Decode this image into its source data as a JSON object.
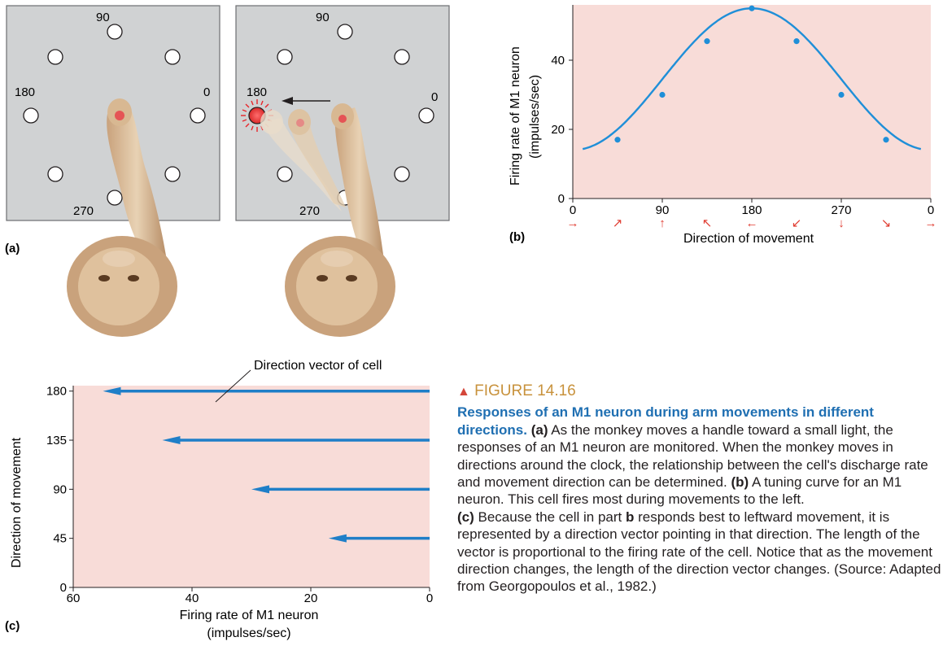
{
  "figure": {
    "number": "FIGURE 14.16",
    "heading": "Responses of an M1 neuron during arm movements in different directions.",
    "text_a_label": "(a)",
    "text_a": "As the monkey moves a handle toward a small light, the responses of an M1 neuron are monitored. When the monkey moves in directions around the clock, the relationship between the cell's discharge rate and movement direction can be determined.",
    "text_b_label": "(b)",
    "text_b": "A tuning curve for an M1 neuron. This cell fires most during movements to the left.",
    "text_c_label": "(c)",
    "text_c_1": "Because the cell in part",
    "text_c_b": "b",
    "text_c_2": "responds best to leftward movement, it is represented by a direction vector pointing in that direction. The length of the vector is proportional to the firing rate of the cell. Notice that as the movement direction changes, the length of the direction vector changes. (Source: Adapted from Georgopoulos et al., 1982.)"
  },
  "panel_a": {
    "label": "(a)",
    "left": {
      "t90": "90",
      "t180": "180",
      "t0": "0",
      "t270": "270"
    },
    "right": {
      "t90": "90",
      "t180": "180",
      "t0": "0",
      "t270": "270"
    }
  },
  "colors": {
    "curve": "#1f8fd8",
    "arrow": "#1f7fc8",
    "plot_bg": "#f8dcd8",
    "panel_bg": "#d0d2d3",
    "lit": "#e8242a"
  },
  "chart_data": [
    {
      "type": "line",
      "panel_label": "(b)",
      "xlabel": "Direction of movement",
      "ylabel": "Firing rate of M1 neuron",
      "ylabel2": "(impulses/sec)",
      "xticks": [
        "0",
        "90",
        "180",
        "270",
        "0"
      ],
      "yticks": [
        "0",
        "20",
        "40"
      ],
      "xlim": [
        0,
        360
      ],
      "ylim": [
        0,
        56
      ],
      "x": [
        45,
        90,
        135,
        180,
        225,
        270,
        315
      ],
      "y": [
        17,
        30,
        45.5,
        55,
        45.5,
        30,
        17
      ],
      "curve_range": [
        10,
        350
      ],
      "direction_arrows": [
        "→",
        "↗",
        "↑",
        "↖",
        "←",
        "↙",
        "↓",
        "↘",
        "→"
      ],
      "direction_arrow_angles": [
        0,
        45,
        90,
        135,
        180,
        225,
        270,
        315,
        360
      ]
    },
    {
      "type": "bar",
      "orientation": "horizontal",
      "panel_label": "(c)",
      "annotation": "Direction vector of cell",
      "xlabel": "Firing rate of M1 neuron",
      "xlabel2": "(impulses/sec)",
      "ylabel": "Direction of movement",
      "xticks": [
        "60",
        "40",
        "20",
        "0"
      ],
      "yticks": [
        "0",
        "45",
        "90",
        "135",
        "180"
      ],
      "categories": [
        180,
        135,
        90,
        45
      ],
      "values": [
        55,
        45,
        30,
        17
      ],
      "xlim": [
        60,
        0
      ],
      "ylim": [
        0,
        185
      ]
    }
  ]
}
